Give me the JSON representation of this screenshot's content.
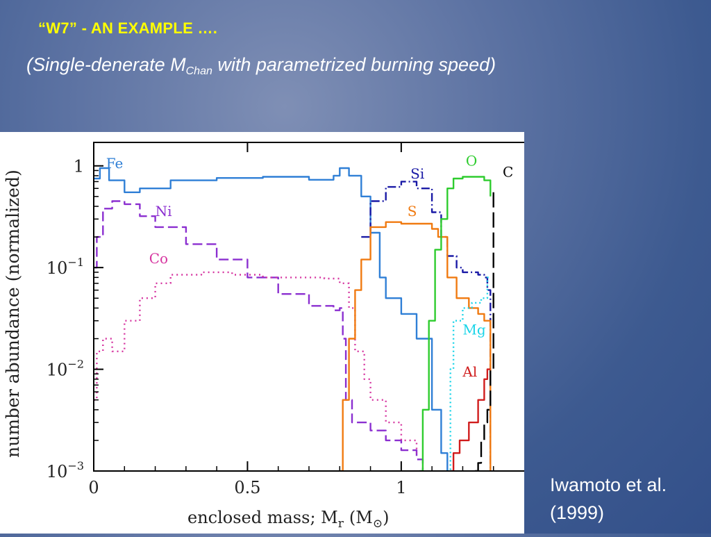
{
  "slide": {
    "title": "“W7” -  AN EXAMPLE ….",
    "subtitle_prefix": "(Single-denerate M",
    "subtitle_sub": "Chan",
    "subtitle_suffix": " with parametrized burning speed)",
    "citation_line1": "Iwamoto et al.",
    "citation_line2": "(1999)"
  },
  "chart_data": {
    "type": "line",
    "title": "",
    "xlabel": "enclosed mass; M",
    "xlabel_sub": "r",
    "xlabel_unit": "(M",
    "xlabel_unit_sub": "⊙",
    "xlabel_unit_close": ")",
    "ylabel": "number abundance (normalized)",
    "xlim": [
      0,
      1.4
    ],
    "ylim": [
      0.001,
      1.7
    ],
    "yscale": "log",
    "x_ticks": [
      "0",
      "0.5",
      "1"
    ],
    "x_tick_values": [
      0,
      0.5,
      1
    ],
    "y_ticks": [
      {
        "value": 1,
        "base": "1",
        "exp": ""
      },
      {
        "value": 0.1,
        "base": "10",
        "exp": "−1"
      },
      {
        "value": 0.01,
        "base": "10",
        "exp": "−2"
      },
      {
        "value": 0.001,
        "base": "10",
        "exp": "−3"
      }
    ],
    "series": [
      {
        "name": "Fe",
        "color": "#2f7fd6",
        "dash": "",
        "label_x": 0.04,
        "label_y": 0.95,
        "x": [
          0,
          0.02,
          0.05,
          0.1,
          0.15,
          0.25,
          0.4,
          0.55,
          0.7,
          0.78,
          0.8,
          0.83,
          0.87,
          0.9,
          0.93,
          0.95,
          1.0,
          1.05,
          1.1,
          1.13,
          1.15
        ],
        "y": [
          0.75,
          0.95,
          0.72,
          0.55,
          0.6,
          0.72,
          0.76,
          0.78,
          0.73,
          0.8,
          0.95,
          0.8,
          0.5,
          0.22,
          0.08,
          0.05,
          0.035,
          0.02,
          0.004,
          0.0015,
          0.001
        ]
      },
      {
        "name": "Ni",
        "color": "#8b2fd0",
        "dash": "14,6",
        "label_x": 0.2,
        "label_y": 0.32,
        "x": [
          0,
          0.01,
          0.03,
          0.06,
          0.1,
          0.15,
          0.2,
          0.3,
          0.4,
          0.5,
          0.6,
          0.7,
          0.78,
          0.8,
          0.81,
          0.82,
          0.84,
          0.86,
          0.9,
          0.95,
          1.0,
          1.05,
          1.07
        ],
        "y": [
          0.1,
          0.2,
          0.38,
          0.45,
          0.42,
          0.32,
          0.25,
          0.17,
          0.12,
          0.08,
          0.055,
          0.042,
          0.038,
          0.04,
          0.02,
          0.005,
          0.003,
          0.003,
          0.0025,
          0.002,
          0.0016,
          0.0013,
          0.001
        ]
      },
      {
        "name": "Co",
        "color": "#d635a0",
        "dash": "2,5",
        "label_x": 0.18,
        "label_y": 0.11,
        "x": [
          0,
          0.01,
          0.03,
          0.06,
          0.1,
          0.15,
          0.2,
          0.25,
          0.35,
          0.45,
          0.55,
          0.65,
          0.75,
          0.8,
          0.83,
          0.85,
          0.88,
          0.9,
          0.95,
          1.0,
          1.05
        ],
        "y": [
          0.005,
          0.015,
          0.02,
          0.015,
          0.03,
          0.05,
          0.07,
          0.085,
          0.09,
          0.085,
          0.08,
          0.08,
          0.078,
          0.07,
          0.04,
          0.015,
          0.008,
          0.005,
          0.003,
          0.002,
          0.0015
        ]
      },
      {
        "name": "Si",
        "color": "#1a1aa6",
        "dash": "12,4,2,4",
        "label_x": 1.03,
        "label_y": 0.75,
        "x": [
          0.87,
          0.9,
          0.95,
          1.0,
          1.05,
          1.1,
          1.13,
          1.15,
          1.18,
          1.2,
          1.25,
          1.27,
          1.28,
          1.29
        ],
        "y": [
          0.2,
          0.45,
          0.62,
          0.7,
          0.6,
          0.35,
          0.2,
          0.13,
          0.1,
          0.09,
          0.085,
          0.08,
          0.06,
          0.001
        ]
      },
      {
        "name": "S",
        "color": "#f07a10",
        "dash": "",
        "label_x": 1.02,
        "label_y": 0.32,
        "x": [
          0.8,
          0.81,
          0.83,
          0.85,
          0.87,
          0.9,
          0.95,
          1.0,
          1.05,
          1.1,
          1.12,
          1.15,
          1.18,
          1.22,
          1.25,
          1.27,
          1.29
        ],
        "y": [
          0.001,
          0.005,
          0.02,
          0.06,
          0.12,
          0.25,
          0.28,
          0.27,
          0.27,
          0.24,
          0.2,
          0.08,
          0.05,
          0.04,
          0.035,
          0.03,
          0.001
        ]
      },
      {
        "name": "O",
        "color": "#2ecc2e",
        "dash": "",
        "label_x": 1.21,
        "label_y": 1.0,
        "x": [
          1.06,
          1.07,
          1.09,
          1.11,
          1.13,
          1.15,
          1.17,
          1.2,
          1.25,
          1.27,
          1.29
        ],
        "y": [
          0.001,
          0.004,
          0.03,
          0.15,
          0.3,
          0.6,
          0.75,
          0.78,
          0.78,
          0.72,
          0.5
        ]
      },
      {
        "name": "C",
        "color": "#000000",
        "dash": "22,7",
        "label_x": 1.33,
        "label_y": 0.78,
        "x": [
          1.24,
          1.25,
          1.26,
          1.27,
          1.28,
          1.29,
          1.3
        ],
        "y": [
          0.001,
          0.0012,
          0.002,
          0.003,
          0.004,
          0.01,
          0.55
        ]
      },
      {
        "name": "Mg",
        "color": "#19d4e8",
        "dash": "2,4",
        "label_x": 1.2,
        "label_y": 0.022,
        "x": [
          1.15,
          1.16,
          1.17,
          1.2,
          1.23,
          1.26,
          1.28,
          1.29
        ],
        "y": [
          0.001,
          0.01,
          0.03,
          0.04,
          0.045,
          0.05,
          0.08,
          0.08
        ]
      },
      {
        "name": "Al",
        "color": "#d01c1c",
        "dash": "",
        "label_x": 1.2,
        "label_y": 0.0085,
        "x": [
          1.16,
          1.17,
          1.19,
          1.22,
          1.25,
          1.27,
          1.28,
          1.29
        ],
        "y": [
          0.001,
          0.0015,
          0.002,
          0.003,
          0.005,
          0.008,
          0.01,
          0.01
        ]
      }
    ]
  }
}
